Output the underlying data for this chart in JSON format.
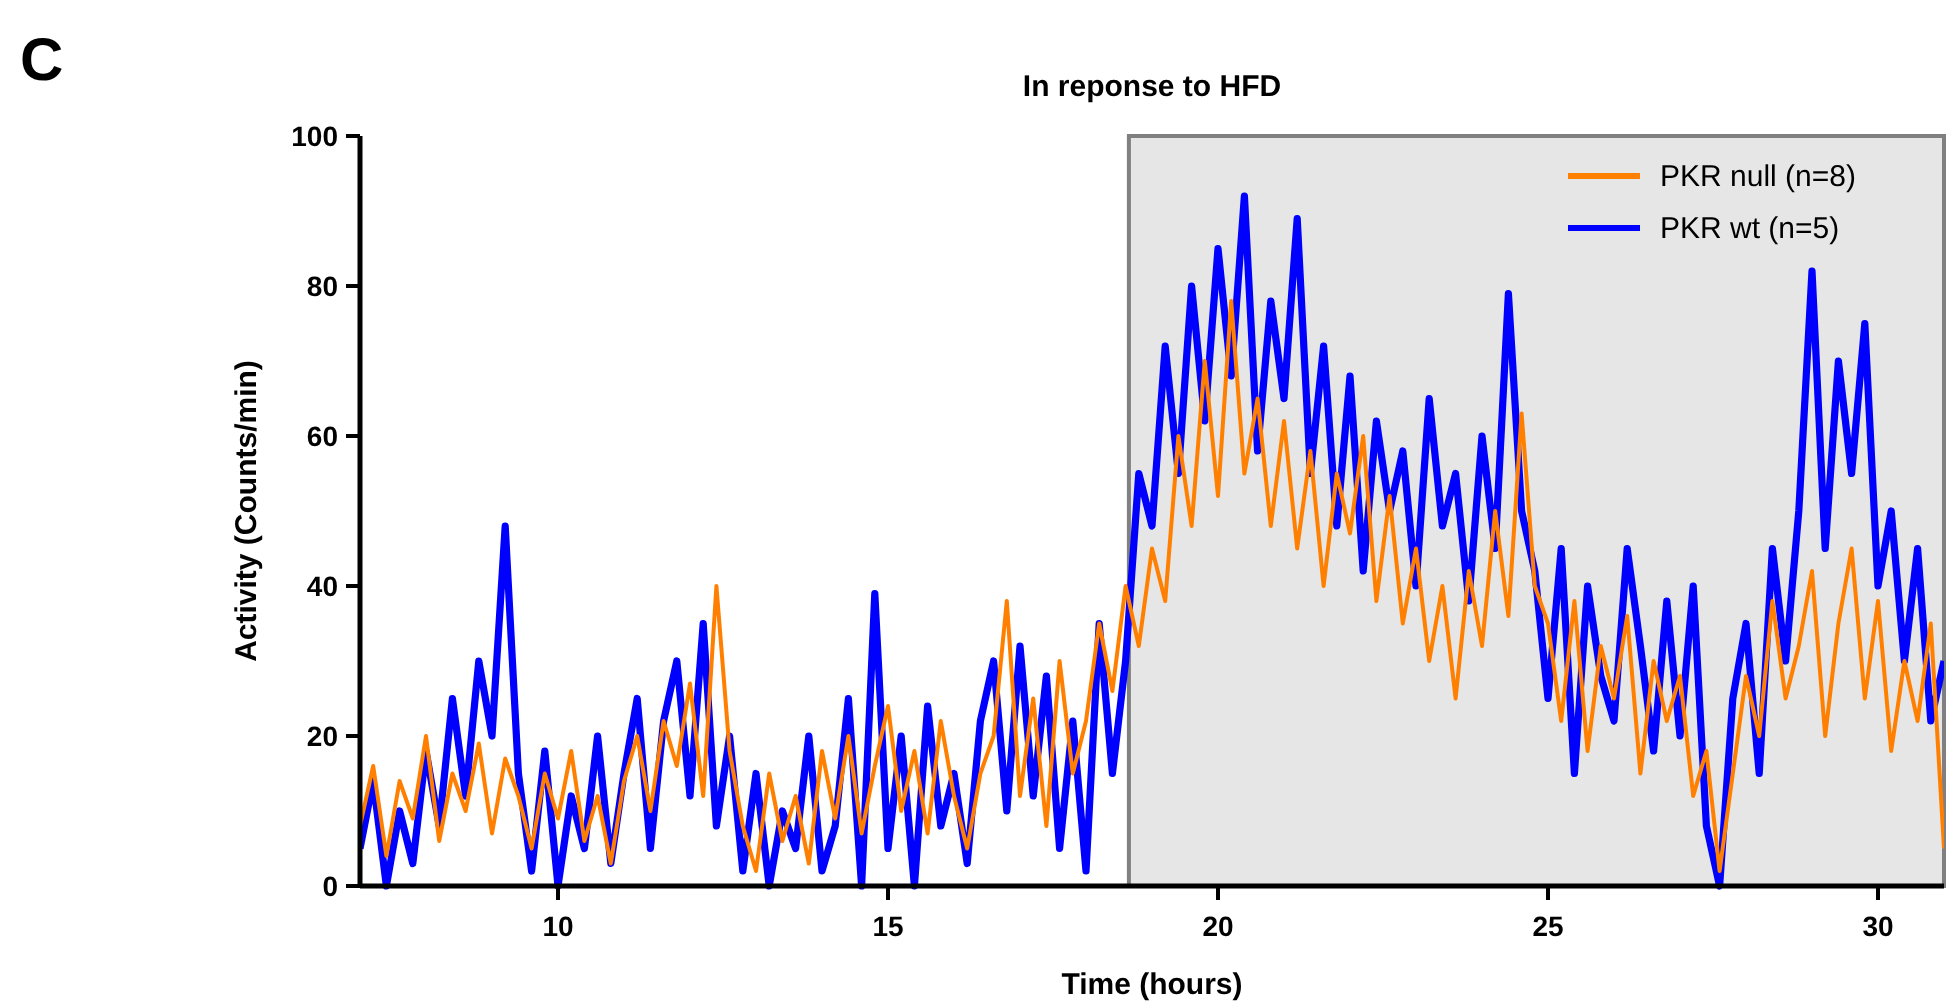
{
  "chart_data": {
    "type": "line",
    "title": "In reponse to HFD",
    "xlabel": "Time (hours)",
    "ylabel": "Activity (Counts/min)",
    "annotations": [
      "C"
    ],
    "xlim": [
      7,
      31
    ],
    "xticks": [
      10,
      15,
      20,
      25,
      30
    ],
    "ylim": [
      0,
      100
    ],
    "yticks": [
      0,
      20,
      40,
      60,
      80,
      100
    ],
    "grid": false,
    "legend": "top right",
    "marker": "none",
    "line_style": "solid",
    "bands": [
      {
        "axis": "x",
        "from": 18.65,
        "to": 31,
        "color": "#e6e6e6"
      }
    ],
    "x": [
      7,
      7.2,
      7.4,
      7.6,
      7.8,
      8,
      8.2,
      8.4,
      8.6,
      8.8,
      9,
      9.2,
      9.4,
      9.6,
      9.8,
      10,
      10.2,
      10.4,
      10.6,
      10.8,
      11,
      11.2,
      11.4,
      11.6,
      11.8,
      12,
      12.2,
      12.4,
      12.6,
      12.8,
      13,
      13.2,
      13.4,
      13.6,
      13.8,
      14,
      14.2,
      14.4,
      14.6,
      14.8,
      15,
      15.2,
      15.4,
      15.6,
      15.8,
      16,
      16.2,
      16.4,
      16.6,
      16.8,
      17,
      17.2,
      17.4,
      17.6,
      17.8,
      18,
      18.2,
      18.4,
      18.6,
      18.8,
      19,
      19.2,
      19.4,
      19.6,
      19.8,
      20,
      20.2,
      20.4,
      20.6,
      20.8,
      21,
      21.2,
      21.4,
      21.6,
      21.8,
      22,
      22.2,
      22.4,
      22.6,
      22.8,
      23,
      23.2,
      23.4,
      23.6,
      23.8,
      24,
      24.2,
      24.4,
      24.6,
      24.8,
      25,
      25.2,
      25.4,
      25.6,
      25.8,
      26,
      26.2,
      26.4,
      26.6,
      26.8,
      27,
      27.2,
      27.4,
      27.6,
      27.8,
      28,
      28.2,
      28.4,
      28.6,
      28.8,
      29,
      29.2,
      29.4,
      29.6,
      29.8,
      30,
      30.2,
      30.4,
      30.6,
      30.8,
      31
    ],
    "series": [
      {
        "name": "PKR wt (n=5)",
        "color": "#0000ff",
        "values": [
          5,
          14,
          0,
          10,
          3,
          18,
          8,
          25,
          12,
          30,
          20,
          48,
          15,
          2,
          18,
          0,
          12,
          5,
          20,
          3,
          15,
          25,
          5,
          22,
          30,
          12,
          35,
          8,
          20,
          2,
          15,
          0,
          10,
          5,
          20,
          2,
          8,
          25,
          0,
          39,
          5,
          20,
          0,
          24,
          8,
          15,
          3,
          22,
          30,
          10,
          32,
          12,
          28,
          5,
          22,
          2,
          35,
          15,
          30,
          55,
          48,
          72,
          55,
          80,
          62,
          85,
          68,
          92,
          58,
          78,
          65,
          89,
          55,
          72,
          48,
          68,
          42,
          62,
          50,
          58,
          40,
          65,
          48,
          55,
          38,
          60,
          45,
          79,
          50,
          42,
          25,
          45,
          15,
          40,
          28,
          22,
          45,
          32,
          18,
          38,
          20,
          40,
          8,
          0,
          25,
          35,
          15,
          45,
          30,
          50,
          82,
          45,
          70,
          55,
          75,
          40,
          50,
          30,
          45,
          22,
          30
        ]
      },
      {
        "name": "PKR null (n=8)",
        "color": "#ff8000",
        "values": [
          8,
          16,
          4,
          14,
          9,
          20,
          6,
          15,
          10,
          19,
          7,
          17,
          12,
          5,
          15,
          9,
          18,
          6,
          12,
          3,
          14,
          20,
          10,
          22,
          16,
          27,
          12,
          40,
          18,
          8,
          2,
          15,
          6,
          12,
          3,
          18,
          9,
          20,
          7,
          16,
          24,
          10,
          18,
          7,
          22,
          12,
          5,
          15,
          20,
          38,
          12,
          25,
          8,
          30,
          15,
          22,
          35,
          26,
          40,
          32,
          45,
          38,
          60,
          48,
          70,
          52,
          78,
          55,
          65,
          48,
          62,
          45,
          58,
          40,
          55,
          47,
          60,
          38,
          52,
          35,
          45,
          30,
          40,
          25,
          42,
          32,
          50,
          36,
          63,
          40,
          35,
          22,
          38,
          18,
          32,
          25,
          36,
          15,
          30,
          22,
          28,
          12,
          18,
          2,
          15,
          28,
          20,
          38,
          25,
          32,
          42,
          20,
          35,
          45,
          25,
          38,
          18,
          30,
          22,
          35,
          5
        ]
      }
    ]
  }
}
